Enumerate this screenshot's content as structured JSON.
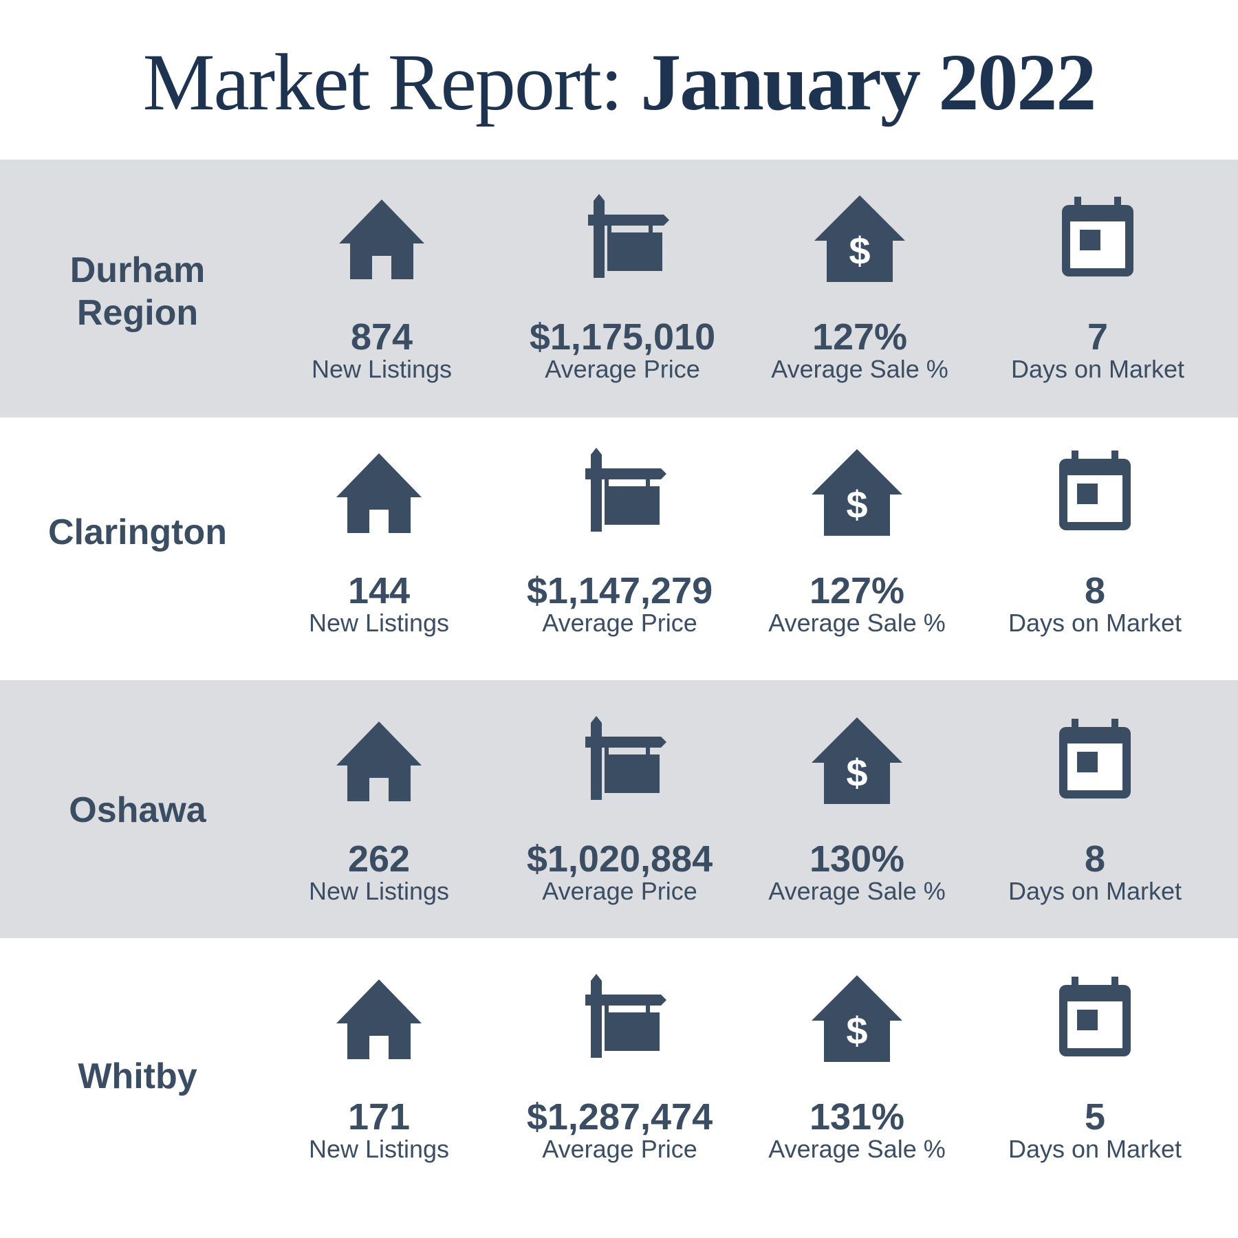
{
  "header": {
    "title_light": "Market Report:",
    "title_bold": "January 2022"
  },
  "regions": [
    {
      "name_line1": "Durham",
      "name_line2": "Region",
      "stats": [
        {
          "icon": "house-icon",
          "value": "874",
          "label": "New Listings"
        },
        {
          "icon": "for-sale-sign-icon",
          "value": "$1,175,010",
          "label": "Average Price"
        },
        {
          "icon": "house-dollar-icon",
          "value": "127%",
          "label": "Average Sale %"
        },
        {
          "icon": "calendar-icon",
          "value": "7",
          "label": "Days on Market"
        }
      ]
    },
    {
      "name_line1": "Clarington",
      "stats": [
        {
          "icon": "house-icon",
          "value": "144",
          "label": "New Listings"
        },
        {
          "icon": "for-sale-sign-icon",
          "value": "$1,147,279",
          "label": "Average Price"
        },
        {
          "icon": "house-dollar-icon",
          "value": "127%",
          "label": "Average Sale %"
        },
        {
          "icon": "calendar-icon",
          "value": "8",
          "label": "Days on Market"
        }
      ]
    },
    {
      "name_line1": "Oshawa",
      "stats": [
        {
          "icon": "house-icon",
          "value": "262",
          "label": "New Listings"
        },
        {
          "icon": "for-sale-sign-icon",
          "value": "$1,020,884",
          "label": "Average Price"
        },
        {
          "icon": "house-dollar-icon",
          "value": "130%",
          "label": "Average Sale %"
        },
        {
          "icon": "calendar-icon",
          "value": "8",
          "label": "Days on Market"
        }
      ]
    },
    {
      "name_line1": "Whitby",
      "stats": [
        {
          "icon": "house-icon",
          "value": "171",
          "label": "New Listings"
        },
        {
          "icon": "for-sale-sign-icon",
          "value": "$1,287,474",
          "label": "Average Price"
        },
        {
          "icon": "house-dollar-icon",
          "value": "131%",
          "label": "Average Sale %"
        },
        {
          "icon": "calendar-icon",
          "value": "5",
          "label": "Days on Market"
        }
      ]
    }
  ],
  "colors": {
    "icon": "#3a4d63",
    "title": "#1d3350",
    "band": "#dcdde0"
  }
}
